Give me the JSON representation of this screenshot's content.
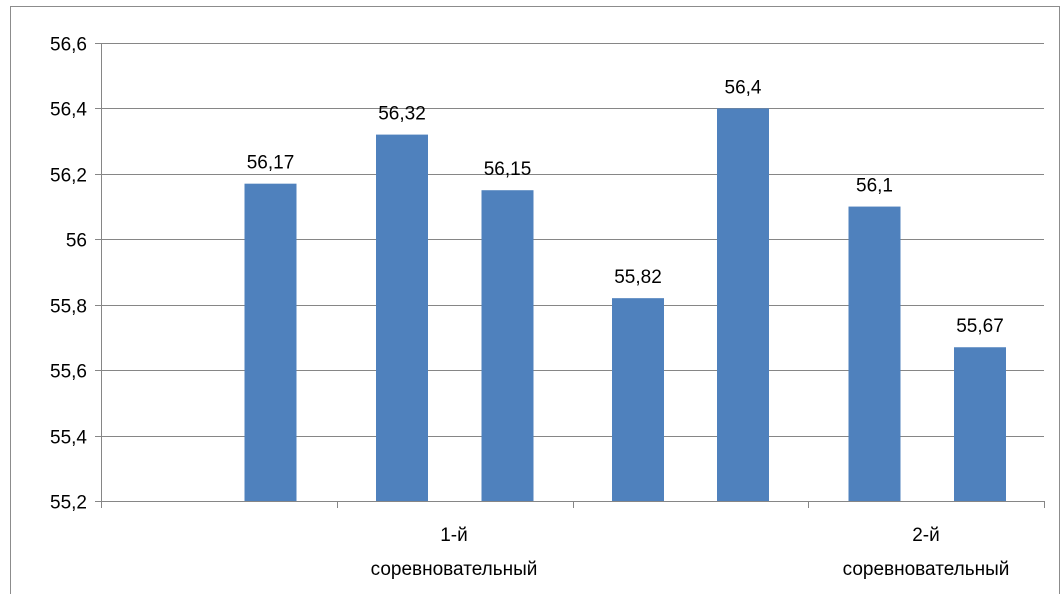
{
  "chart_data": {
    "type": "bar",
    "values": [
      56.17,
      56.32,
      56.15,
      55.82,
      56.4,
      56.1,
      55.67
    ],
    "value_labels": [
      "56,17",
      "56,32",
      "56,15",
      "55,82",
      "56,4",
      "56,1",
      "55,67"
    ],
    "groups": [
      {
        "label_line1": "1-й",
        "label_line2": "соревновательный"
      },
      {
        "label_line1": "2-й",
        "label_line2": "соревновательный"
      }
    ],
    "ylim": [
      55.2,
      56.6
    ],
    "y_ticks": [
      55.2,
      55.4,
      55.6,
      55.8,
      56,
      56.2,
      56.4,
      56.6
    ],
    "y_tick_labels": [
      "55,2",
      "55,4",
      "55,6",
      "55,8",
      "56",
      "56,2",
      "56,4",
      "56,6"
    ],
    "title": "",
    "xlabel": "",
    "ylabel": "",
    "grid": true,
    "legend": "none",
    "colors": {
      "bar": "#4F81BD",
      "grid": "#868686",
      "axis": "#868686"
    }
  }
}
